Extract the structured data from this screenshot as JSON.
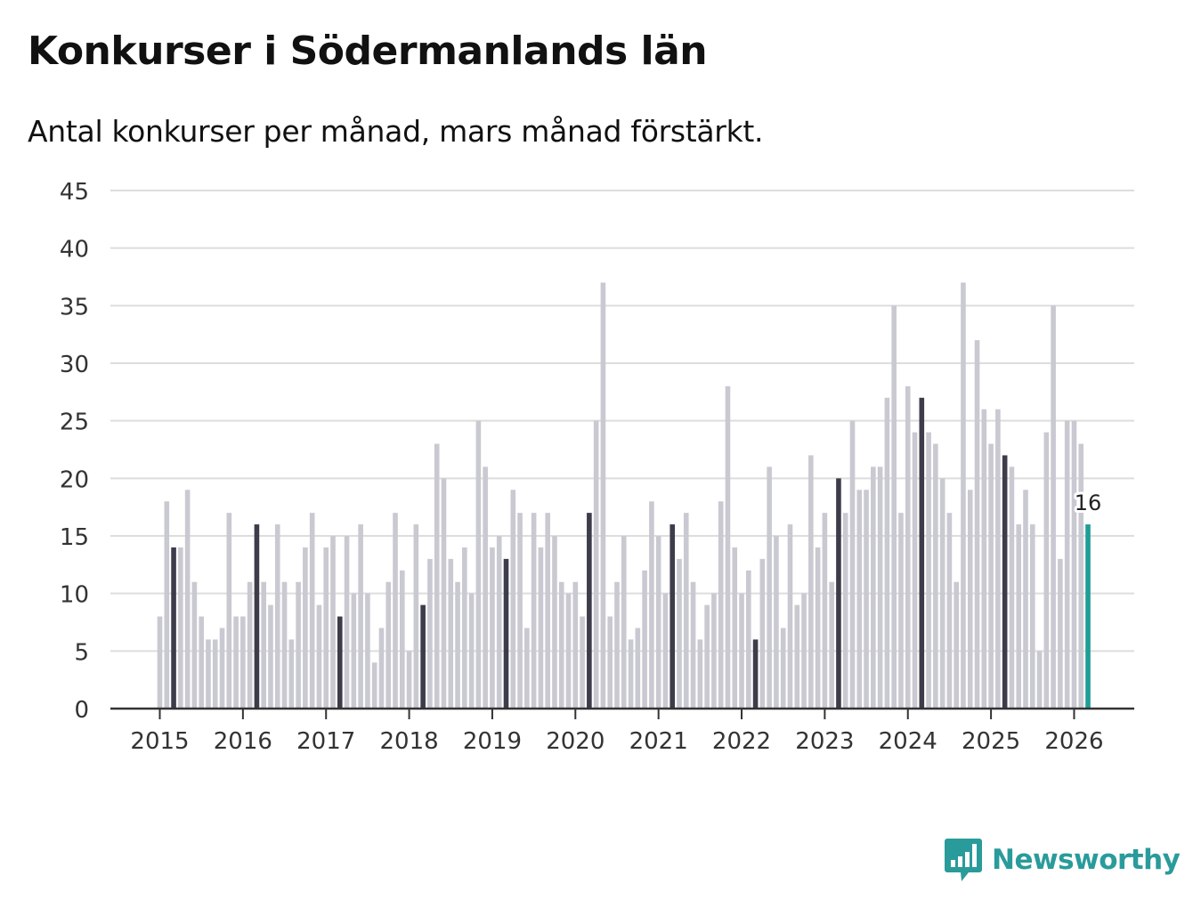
{
  "chart_data": {
    "type": "bar",
    "title": "Konkurser i Södermanlands län",
    "subtitle": "Antal konkurser per månad, mars månad förstärkt.",
    "xlabel": "",
    "ylabel": "",
    "ylim": [
      0,
      45
    ],
    "yticks": [
      0,
      5,
      10,
      15,
      20,
      25,
      30,
      35,
      40,
      45
    ],
    "year_labels": [
      "2015",
      "2016",
      "2017",
      "2018",
      "2019",
      "2020",
      "2021",
      "2022",
      "2023",
      "2024",
      "2025",
      "2026"
    ],
    "start": "2015-01",
    "highlight_month": "mars",
    "values": [
      8,
      18,
      14,
      14,
      19,
      11,
      8,
      6,
      6,
      7,
      17,
      8,
      8,
      11,
      16,
      11,
      9,
      16,
      11,
      6,
      11,
      14,
      17,
      9,
      14,
      15,
      8,
      15,
      10,
      16,
      10,
      4,
      7,
      11,
      17,
      12,
      5,
      16,
      9,
      13,
      23,
      20,
      13,
      11,
      14,
      10,
      25,
      21,
      14,
      15,
      13,
      19,
      17,
      7,
      17,
      14,
      17,
      15,
      11,
      10,
      11,
      8,
      17,
      25,
      37,
      8,
      11,
      15,
      6,
      7,
      12,
      18,
      15,
      10,
      16,
      13,
      17,
      11,
      6,
      9,
      10,
      18,
      28,
      14,
      10,
      12,
      6,
      13,
      21,
      15,
      7,
      16,
      9,
      10,
      22,
      14,
      17,
      11,
      20,
      17,
      25,
      19,
      19,
      21,
      21,
      27,
      35,
      17,
      28,
      24,
      27,
      24,
      23,
      20,
      17,
      11,
      37,
      19,
      32,
      26,
      23,
      26,
      22,
      21,
      16,
      19,
      16,
      5,
      24,
      35,
      13,
      25,
      25,
      23,
      16
    ],
    "latest_label": "16",
    "colors": {
      "bar": "#c9c9d1",
      "highlight": "#3d3c4a",
      "latest": "#1f9e96",
      "grid": "#dddddd",
      "axis": "#333333",
      "text": "#333333"
    }
  },
  "brand": {
    "name": "Newsworthy",
    "icon": "bar-chart-speech-bubble-icon",
    "color": "#2a9b9b"
  }
}
